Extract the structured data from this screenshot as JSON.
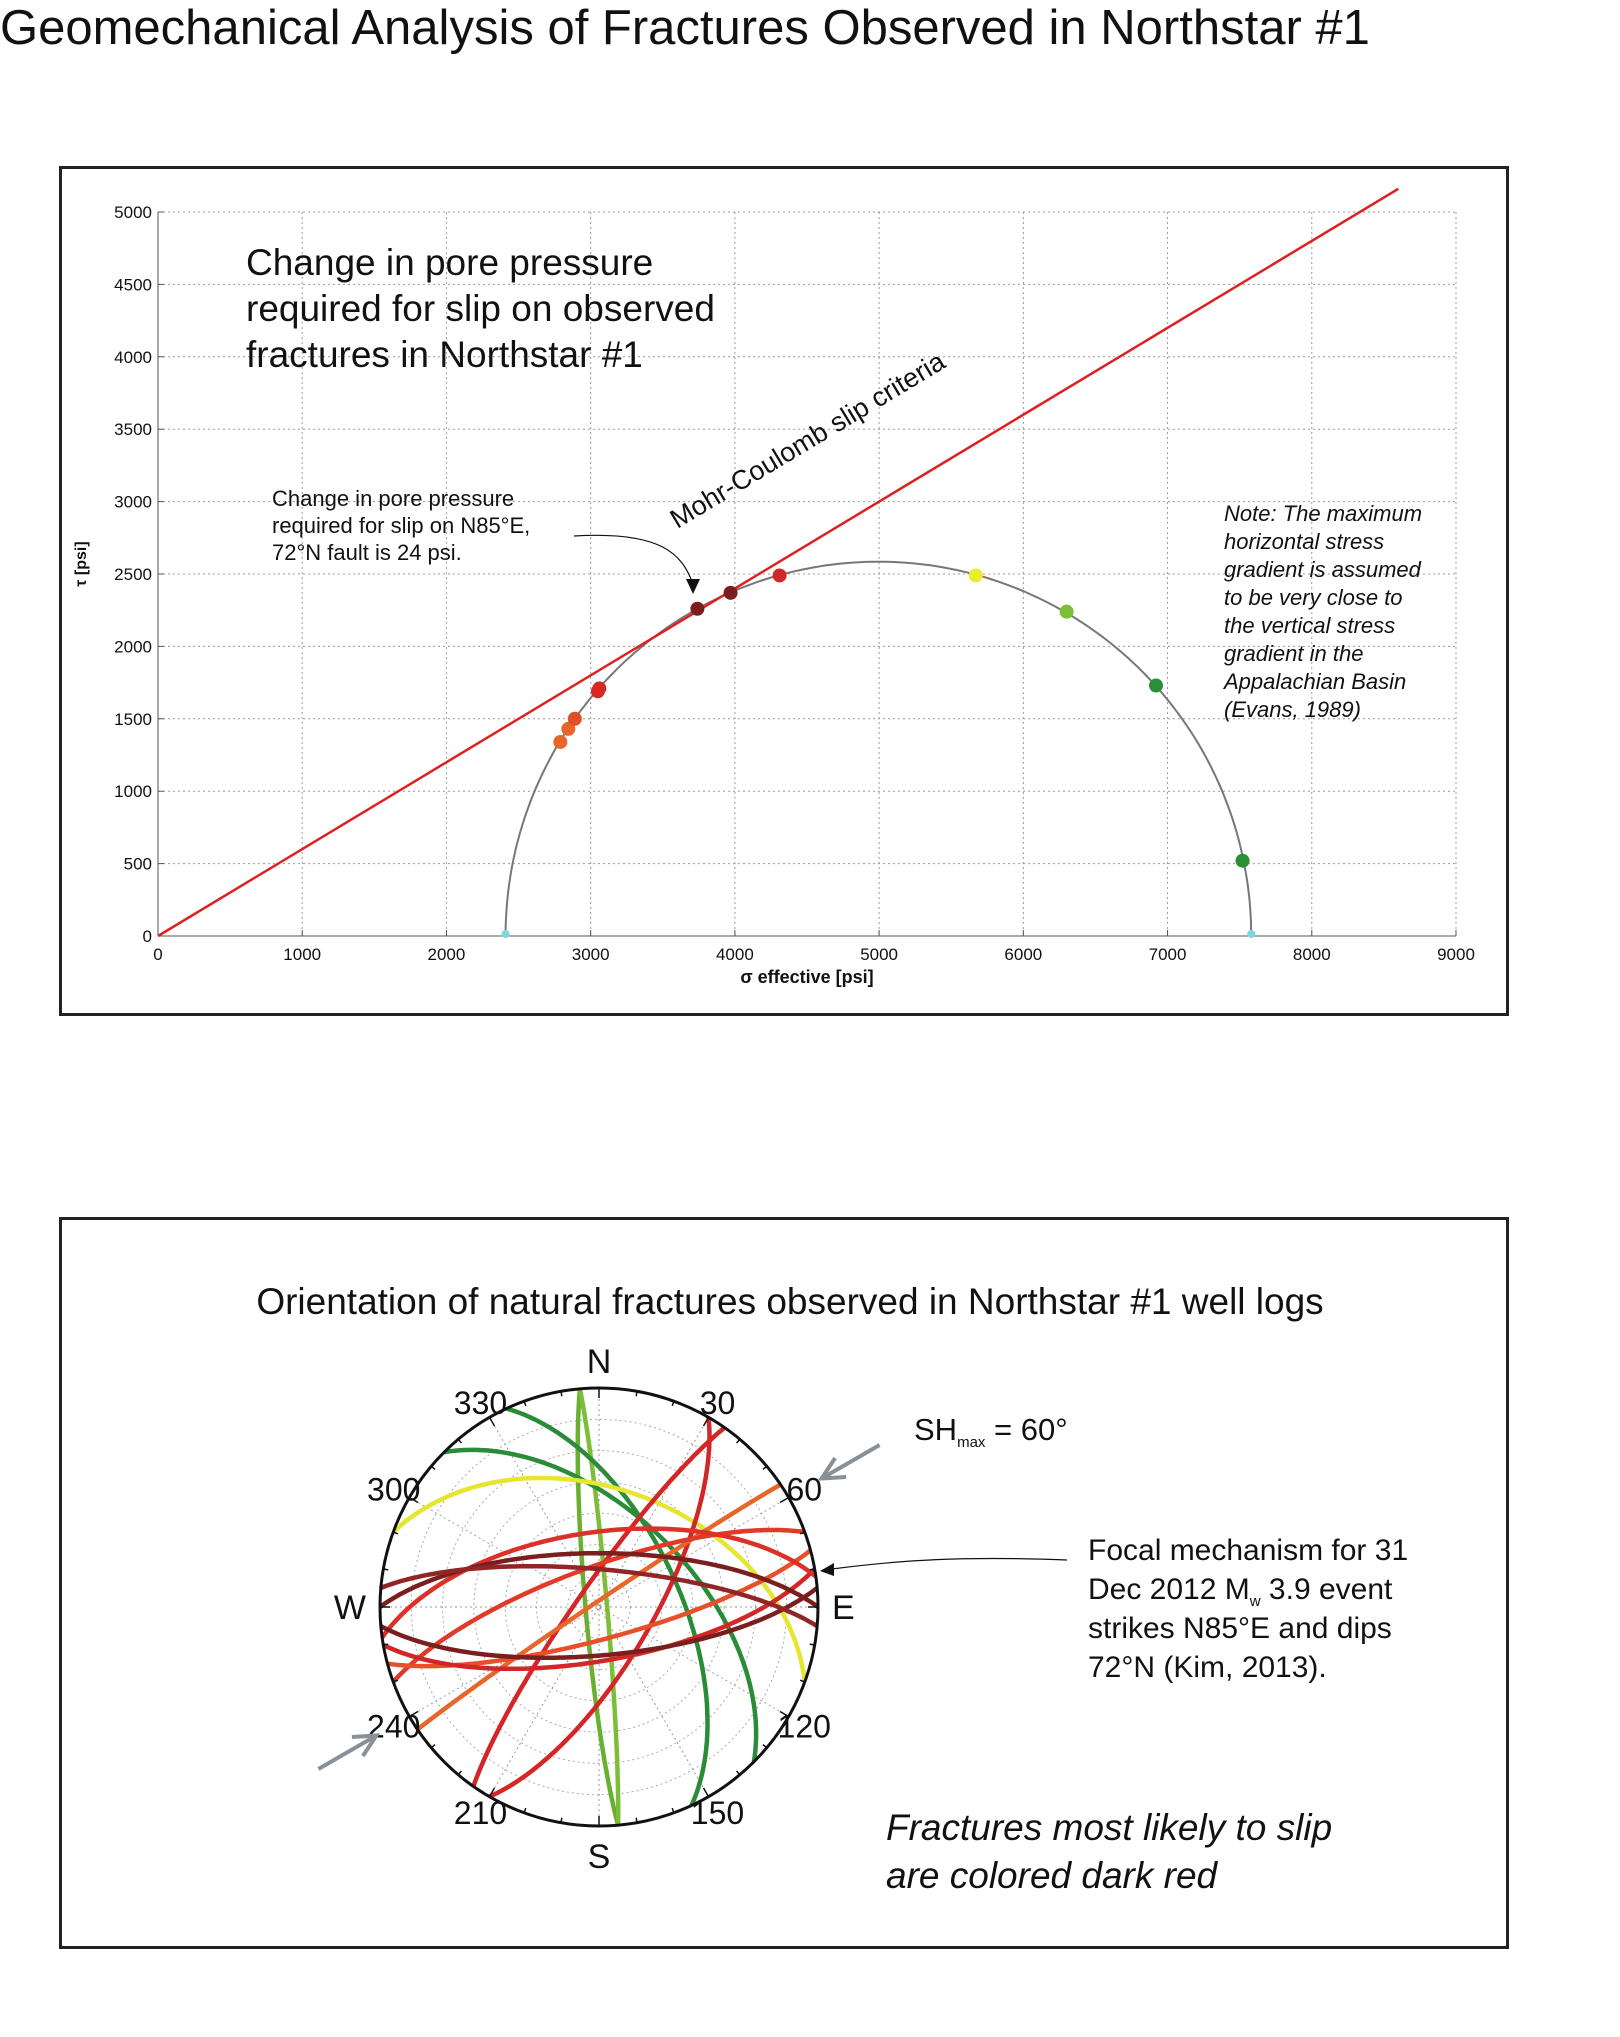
{
  "page_title": "Geomechanical Analysis of Fractures Observed in Northstar #1",
  "colors": {
    "slip_line": "#e02020",
    "circle": "#777777",
    "grid": "#9a9a9a",
    "compass_circle": "#111111",
    "arrow": "#8a9098"
  },
  "chart_data": [
    {
      "type": "scatter",
      "panel_title": "Change in pore pressure required for slip on observed fractures in Northstar #1",
      "title_lines": [
        "Change in pore pressure",
        "required for slip on observed",
        "fractures in Northstar #1"
      ],
      "xlabel": "σ effective [psi]",
      "ylabel": "τ [psi]",
      "xlim": [
        0,
        9000
      ],
      "ylim": [
        0,
        5000
      ],
      "x_ticks": [
        "0",
        "1000",
        "2000",
        "3000",
        "4000",
        "5000",
        "6000",
        "7000",
        "8000",
        "9000"
      ],
      "y_ticks": [
        "0",
        "500",
        "1000",
        "1500",
        "2000",
        "2500",
        "3000",
        "3500",
        "4000",
        "4500",
        "5000"
      ],
      "grid": true,
      "slip_line": {
        "label": "Mohr-Coulomb slip criteria",
        "x": [
          0,
          8600
        ],
        "y": [
          0,
          5160
        ]
      },
      "mohr_circle": {
        "sigma3": 2410,
        "sigma1": 7580
      },
      "points": [
        {
          "x": 2790,
          "y": 1340,
          "color": "#e8662a"
        },
        {
          "x": 2845,
          "y": 1430,
          "color": "#e8662a"
        },
        {
          "x": 2890,
          "y": 1500,
          "color": "#e05028"
        },
        {
          "x": 3050,
          "y": 1690,
          "color": "#d62a22"
        },
        {
          "x": 3060,
          "y": 1710,
          "color": "#d62a22"
        },
        {
          "x": 3740,
          "y": 2260,
          "color": "#7a1e1e"
        },
        {
          "x": 3970,
          "y": 2370,
          "color": "#7a1e1e"
        },
        {
          "x": 4310,
          "y": 2490,
          "color": "#d02828"
        },
        {
          "x": 5670,
          "y": 2490,
          "color": "#ecec2c"
        },
        {
          "x": 6300,
          "y": 2240,
          "color": "#7cbe38"
        },
        {
          "x": 6920,
          "y": 1730,
          "color": "#2a9038"
        },
        {
          "x": 7520,
          "y": 520,
          "color": "#2a9038"
        }
      ],
      "annotations": [
        {
          "name": "pore-pressure-note",
          "lines": [
            "Change in pore pressure",
            "required for slip on N85°E,",
            "72°N fault is 24 psi."
          ]
        },
        {
          "name": "stress-note",
          "lines": [
            "Note: The maximum",
            "horizontal stress",
            "gradient is assumed",
            "to be very close to",
            "the vertical stress",
            "gradient in the",
            "Appalachian Basin",
            "(Evans, 1989)"
          ]
        }
      ]
    },
    {
      "type": "stereonet",
      "title": "Orientation of natural fractures observed in Northstar #1 well logs",
      "cardinal_labels": {
        "N": "N",
        "E": "E",
        "S": "S",
        "W": "W"
      },
      "azimuth_labels": [
        {
          "deg": 30,
          "text": "30"
        },
        {
          "deg": 60,
          "text": "60"
        },
        {
          "deg": 120,
          "text": "120"
        },
        {
          "deg": 150,
          "text": "150"
        },
        {
          "deg": 210,
          "text": "210"
        },
        {
          "deg": 240,
          "text": "240"
        },
        {
          "deg": 300,
          "text": "300"
        },
        {
          "deg": 330,
          "text": "330"
        }
      ],
      "shmax_azimuth": 60,
      "shmax_text": {
        "main": "SH",
        "sub": "max",
        "rest": " = 60°"
      },
      "focal_note": [
        {
          "main": "Focal mechanism for 31"
        },
        {
          "main": "Dec 2012 M",
          "sub": "w",
          "rest": " 3.9 event"
        },
        {
          "main": "strikes N85°E and dips"
        },
        {
          "main": "72°N (Kim, 2013)."
        }
      ],
      "footer_lines": [
        "Fractures most likely to slip",
        "are colored dark red"
      ],
      "planes": [
        {
          "strike": 175,
          "dip": 85,
          "color": "#6ab030"
        },
        {
          "strike": 355,
          "dip": 87,
          "color": "#7cbe38"
        },
        {
          "strike": 315,
          "dip": 55,
          "color": "#2a8c38"
        },
        {
          "strike": 335,
          "dip": 60,
          "color": "#2a8c38"
        },
        {
          "strike": 290,
          "dip": 45,
          "color": "#e6e630"
        },
        {
          "strike": 30,
          "dip": 70,
          "color": "#d42626"
        },
        {
          "strike": 215,
          "dip": 82,
          "color": "#d42626"
        },
        {
          "strike": 236,
          "dip": 88,
          "color": "#e8662a"
        },
        {
          "strike": 250,
          "dip": 75,
          "color": "#e23a28"
        },
        {
          "strike": 75,
          "dip": 78,
          "color": "#e8502a"
        },
        {
          "strike": 80,
          "dip": 70,
          "color": "#d42626"
        },
        {
          "strike": 262,
          "dip": 62,
          "color": "#dc3028"
        },
        {
          "strike": 85,
          "dip": 72,
          "color": "#7a1e1e"
        },
        {
          "strike": 270,
          "dip": 70,
          "color": "#7a1e1e"
        },
        {
          "strike": 275,
          "dip": 76,
          "color": "#922626"
        }
      ]
    }
  ]
}
